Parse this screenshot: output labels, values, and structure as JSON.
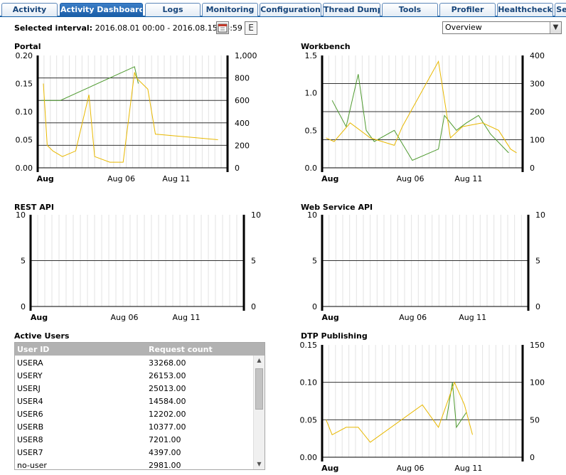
{
  "tabs": [
    {
      "label": "Activity",
      "active": false
    },
    {
      "label": "Activity Dashboards",
      "active": true
    },
    {
      "label": "Logs",
      "active": false
    },
    {
      "label": "Monitoring",
      "active": false
    },
    {
      "label": "Configuration",
      "active": false
    },
    {
      "label": "Thread Dump",
      "active": false
    },
    {
      "label": "Tools",
      "active": false
    },
    {
      "label": "Profiler",
      "active": false
    },
    {
      "label": "Healthcheck",
      "active": false
    },
    {
      "label": "Se",
      "active": false
    }
  ],
  "interval": {
    "label": "Selected interval:",
    "value": "2016.08.01 00:00 - 2016.08.15 23:59"
  },
  "calendar_icon": "calendar-icon",
  "export_label": "E",
  "view_select": {
    "value": "Overview"
  },
  "colors": {
    "green": "#4e9a2f",
    "yellow": "#e8b800",
    "tab_active": "#1a5ea8",
    "table_header": "#b2b2b2"
  },
  "chart_data": [
    {
      "id": "portal",
      "type": "line",
      "title": "Portal",
      "x_labels": [
        "Aug",
        "Aug 06",
        "Aug 11"
      ],
      "left_ticks": [
        "0.20",
        "0.15",
        "0.10",
        "0.05",
        "0.00"
      ],
      "left_range": [
        0,
        0.2
      ],
      "right_ticks": [
        "1,000",
        "800",
        "600",
        "400",
        "200",
        "0"
      ],
      "right_range": [
        0,
        1000
      ],
      "grid_right": [
        200,
        400,
        600,
        800
      ],
      "series": [
        {
          "color": "#4e9a2f",
          "axis": "left",
          "points": [
            [
              0.02,
              0.12
            ],
            [
              0.12,
              0.12
            ],
            [
              0.51,
              0.18
            ],
            [
              0.53,
              0.15
            ]
          ]
        },
        {
          "color": "#e8b800",
          "axis": "left",
          "points": [
            [
              0.03,
              0.15
            ],
            [
              0.05,
              0.04
            ],
            [
              0.08,
              0.03
            ],
            [
              0.13,
              0.02
            ],
            [
              0.2,
              0.03
            ],
            [
              0.27,
              0.13
            ],
            [
              0.3,
              0.02
            ],
            [
              0.38,
              0.01
            ],
            [
              0.45,
              0.01
            ],
            [
              0.51,
              0.17
            ],
            [
              0.52,
              0.16
            ],
            [
              0.58,
              0.14
            ],
            [
              0.62,
              0.06
            ],
            [
              0.95,
              0.05
            ]
          ]
        }
      ]
    },
    {
      "id": "workbench",
      "type": "line",
      "title": "Workbench",
      "x_labels": [
        "Aug",
        "Aug 06",
        "Aug 11"
      ],
      "left_ticks": [
        "1.5",
        "1.0",
        "0.5",
        "0.0"
      ],
      "left_range": [
        0,
        1.5
      ],
      "right_ticks": [
        "400",
        "300",
        "200",
        "100",
        "0"
      ],
      "right_range": [
        0,
        400
      ],
      "grid_right": [
        100,
        200,
        300
      ],
      "series": [
        {
          "color": "#4e9a2f",
          "axis": "left",
          "points": [
            [
              0.05,
              0.9
            ],
            [
              0.12,
              0.55
            ],
            [
              0.18,
              1.25
            ],
            [
              0.22,
              0.5
            ],
            [
              0.26,
              0.35
            ],
            [
              0.36,
              0.5
            ],
            [
              0.45,
              0.1
            ],
            [
              0.58,
              0.25
            ],
            [
              0.61,
              0.7
            ],
            [
              0.67,
              0.5
            ],
            [
              0.72,
              0.6
            ],
            [
              0.78,
              0.7
            ],
            [
              0.84,
              0.45
            ],
            [
              0.93,
              0.2
            ]
          ]
        },
        {
          "color": "#e8b800",
          "axis": "left",
          "points": [
            [
              0.02,
              0.4
            ],
            [
              0.06,
              0.35
            ],
            [
              0.14,
              0.6
            ],
            [
              0.24,
              0.4
            ],
            [
              0.36,
              0.3
            ],
            [
              0.4,
              0.55
            ],
            [
              0.58,
              1.42
            ],
            [
              0.64,
              0.4
            ],
            [
              0.7,
              0.55
            ],
            [
              0.8,
              0.6
            ],
            [
              0.88,
              0.5
            ],
            [
              0.94,
              0.25
            ],
            [
              0.97,
              0.2
            ]
          ]
        }
      ]
    },
    {
      "id": "rest",
      "type": "line",
      "title": "REST API",
      "x_labels": [
        "Aug",
        "Aug 06",
        "Aug 11"
      ],
      "left_ticks": [
        "10",
        "5",
        "0"
      ],
      "left_range": [
        0,
        10
      ],
      "right_ticks": [
        "10",
        "5",
        "0"
      ],
      "right_range": [
        0,
        10
      ],
      "grid_right": [
        5
      ],
      "series": []
    },
    {
      "id": "ws",
      "type": "line",
      "title": "Web Service API",
      "x_labels": [
        "Aug",
        "Aug 06",
        "Aug 11"
      ],
      "left_ticks": [
        "10",
        "5",
        "0"
      ],
      "left_range": [
        0,
        10
      ],
      "right_ticks": [
        "10",
        "5",
        "0"
      ],
      "right_range": [
        0,
        10
      ],
      "grid_right": [
        5
      ],
      "series": []
    },
    {
      "id": "dtp",
      "type": "line",
      "title": "DTP Publishing",
      "x_labels": [
        "Aug",
        "Aug 06",
        "Aug 11"
      ],
      "left_ticks": [
        "0.15",
        "0.10",
        "0.05",
        "0.00"
      ],
      "left_range": [
        0,
        0.15
      ],
      "right_ticks": [
        "150",
        "100",
        "50",
        "0"
      ],
      "right_range": [
        0,
        150
      ],
      "grid_right": [
        50,
        100
      ],
      "series": [
        {
          "color": "#4e9a2f",
          "axis": "left",
          "points": [
            [
              0.62,
              0.05
            ],
            [
              0.65,
              0.1
            ],
            [
              0.67,
              0.04
            ],
            [
              0.72,
              0.06
            ]
          ]
        },
        {
          "color": "#e8b800",
          "axis": "left",
          "points": [
            [
              0.02,
              0.05
            ],
            [
              0.05,
              0.03
            ],
            [
              0.12,
              0.04
            ],
            [
              0.18,
              0.04
            ],
            [
              0.24,
              0.02
            ],
            [
              0.5,
              0.07
            ],
            [
              0.58,
              0.04
            ],
            [
              0.66,
              0.1
            ],
            [
              0.71,
              0.07
            ],
            [
              0.75,
              0.03
            ]
          ]
        }
      ]
    }
  ],
  "active_users": {
    "title": "Active Users",
    "columns": [
      "User ID",
      "Request count"
    ],
    "rows": [
      [
        "USERA",
        "33268.00"
      ],
      [
        "USERY",
        "26153.00"
      ],
      [
        "USERJ",
        "25013.00"
      ],
      [
        "USER4",
        "14584.00"
      ],
      [
        "USER6",
        "12202.00"
      ],
      [
        "USERB",
        "10377.00"
      ],
      [
        "USER8",
        "7201.00"
      ],
      [
        "USER7",
        "4397.00"
      ],
      [
        "no-user",
        "2981.00"
      ]
    ]
  }
}
